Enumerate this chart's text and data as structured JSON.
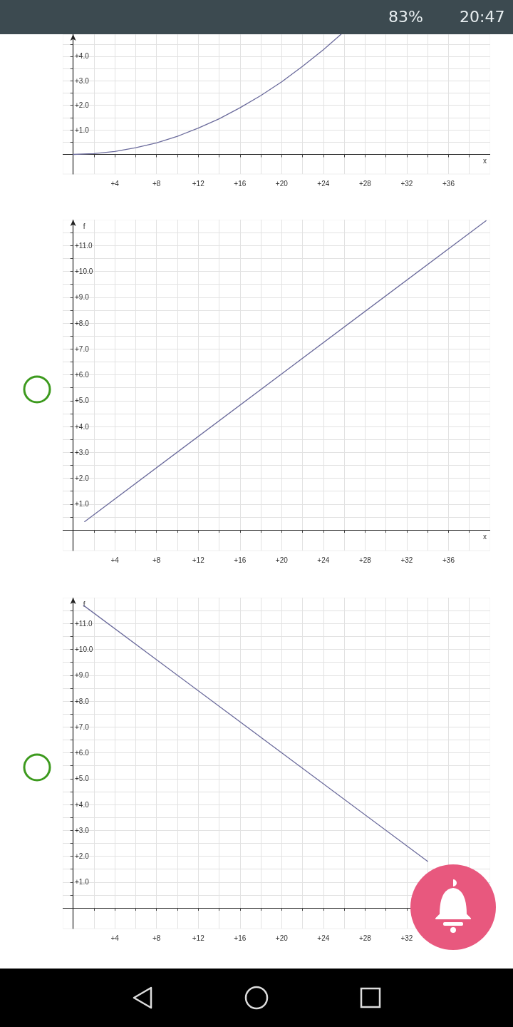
{
  "chart_data": [
    {
      "type": "line",
      "xlabel": "x",
      "annotations": [
        "83%",
        "20:47"
      ],
      "x": [
        0,
        2,
        4,
        6,
        8,
        10,
        12,
        14,
        16,
        18,
        20,
        22,
        24,
        25.7
      ],
      "series": [
        {
          "color": "#6b6b9c",
          "values": [
            0,
            0.03,
            0.12,
            0.27,
            0.47,
            0.74,
            1.07,
            1.45,
            1.9,
            2.4,
            2.96,
            3.59,
            4.27,
            4.9
          ]
        }
      ],
      "xlim": [
        -1,
        40
      ],
      "ylim": [
        -0.8,
        4.9
      ],
      "xticks": [
        {
          "value": 2,
          "label": null
        },
        {
          "value": 4,
          "label": "+4"
        },
        {
          "value": 6,
          "label": null
        },
        {
          "value": 8,
          "label": "+8"
        },
        {
          "value": 10,
          "label": null
        },
        {
          "value": 12,
          "label": "+12"
        },
        {
          "value": 14,
          "label": null
        },
        {
          "value": 16,
          "label": "+16"
        },
        {
          "value": 18,
          "label": null
        },
        {
          "value": 20,
          "label": "+20"
        },
        {
          "value": 22,
          "label": null
        },
        {
          "value": 24,
          "label": "+24"
        },
        {
          "value": 26,
          "label": null
        },
        {
          "value": 28,
          "label": "+28"
        },
        {
          "value": 30,
          "label": null
        },
        {
          "value": 32,
          "label": "+32"
        },
        {
          "value": 34,
          "label": null
        },
        {
          "value": 36,
          "label": "+36"
        },
        {
          "value": 38,
          "label": null
        }
      ],
      "yticks": [
        {
          "value": 0.5,
          "label": null
        },
        {
          "value": 1,
          "label": "+1.0"
        },
        {
          "value": 1.5,
          "label": null
        },
        {
          "value": 2,
          "label": "+2.0"
        },
        {
          "value": 2.5,
          "label": null
        },
        {
          "value": 3,
          "label": "+3.0"
        },
        {
          "value": 3.5,
          "label": null
        },
        {
          "value": 4,
          "label": "+4.0"
        },
        {
          "value": 4.5,
          "label": null
        }
      ],
      "grid": true,
      "marker": "none",
      "line_style": "solid"
    },
    {
      "type": "line",
      "xlabel": "x",
      "ylabel": "f",
      "x": [
        1.1,
        39.6
      ],
      "series": [
        {
          "color": "#6b6b9c",
          "values": [
            0.32,
            11.96
          ]
        }
      ],
      "xlim": [
        -1,
        40
      ],
      "ylim": [
        -0.8,
        12
      ],
      "xticks": [
        {
          "value": 2,
          "label": null
        },
        {
          "value": 4,
          "label": "+4"
        },
        {
          "value": 6,
          "label": null
        },
        {
          "value": 8,
          "label": "+8"
        },
        {
          "value": 10,
          "label": null
        },
        {
          "value": 12,
          "label": "+12"
        },
        {
          "value": 14,
          "label": null
        },
        {
          "value": 16,
          "label": "+16"
        },
        {
          "value": 18,
          "label": null
        },
        {
          "value": 20,
          "label": "+20"
        },
        {
          "value": 22,
          "label": null
        },
        {
          "value": 24,
          "label": "+24"
        },
        {
          "value": 26,
          "label": null
        },
        {
          "value": 28,
          "label": "+28"
        },
        {
          "value": 30,
          "label": null
        },
        {
          "value": 32,
          "label": "+32"
        },
        {
          "value": 34,
          "label": null
        },
        {
          "value": 36,
          "label": "+36"
        },
        {
          "value": 38,
          "label": null
        }
      ],
      "yticks": [
        {
          "value": 0.5,
          "label": null
        },
        {
          "value": 1,
          "label": "+1.0"
        },
        {
          "value": 1.5,
          "label": null
        },
        {
          "value": 2,
          "label": "+2.0"
        },
        {
          "value": 2.5,
          "label": null
        },
        {
          "value": 3,
          "label": "+3.0"
        },
        {
          "value": 3.5,
          "label": null
        },
        {
          "value": 4,
          "label": "+4.0"
        },
        {
          "value": 4.5,
          "label": null
        },
        {
          "value": 5,
          "label": "+5.0"
        },
        {
          "value": 5.5,
          "label": null
        },
        {
          "value": 6,
          "label": "+6.0"
        },
        {
          "value": 6.5,
          "label": null
        },
        {
          "value": 7,
          "label": "+7.0"
        },
        {
          "value": 7.5,
          "label": null
        },
        {
          "value": 8,
          "label": "+8.0"
        },
        {
          "value": 8.5,
          "label": null
        },
        {
          "value": 9,
          "label": "+9.0"
        },
        {
          "value": 9.5,
          "label": null
        },
        {
          "value": 10,
          "label": "+10.0"
        },
        {
          "value": 10.5,
          "label": null
        },
        {
          "value": 11,
          "label": "+11.0"
        },
        {
          "value": 11.5,
          "label": null
        }
      ],
      "grid": true,
      "marker": "none",
      "line_style": "solid"
    },
    {
      "type": "line",
      "ylabel": "f",
      "x": [
        1,
        34
      ],
      "series": [
        {
          "color": "#6b6b9c",
          "values": [
            11.7,
            1.8
          ]
        }
      ],
      "xlim": [
        -1,
        40
      ],
      "ylim": [
        -0.8,
        12
      ],
      "xticks": [
        {
          "value": 2,
          "label": null
        },
        {
          "value": 4,
          "label": "+4"
        },
        {
          "value": 6,
          "label": null
        },
        {
          "value": 8,
          "label": "+8"
        },
        {
          "value": 10,
          "label": null
        },
        {
          "value": 12,
          "label": "+12"
        },
        {
          "value": 14,
          "label": null
        },
        {
          "value": 16,
          "label": "+16"
        },
        {
          "value": 18,
          "label": null
        },
        {
          "value": 20,
          "label": "+20"
        },
        {
          "value": 22,
          "label": null
        },
        {
          "value": 24,
          "label": "+24"
        },
        {
          "value": 26,
          "label": null
        },
        {
          "value": 28,
          "label": "+28"
        },
        {
          "value": 30,
          "label": null
        },
        {
          "value": 32,
          "label": "+32"
        },
        {
          "value": 34,
          "label": null
        },
        {
          "value": 36,
          "label": null
        },
        {
          "value": 38,
          "label": null
        }
      ],
      "yticks": [
        {
          "value": 0.5,
          "label": null
        },
        {
          "value": 1,
          "label": "+1.0"
        },
        {
          "value": 1.5,
          "label": null
        },
        {
          "value": 2,
          "label": "+2.0"
        },
        {
          "value": 2.5,
          "label": null
        },
        {
          "value": 3,
          "label": "+3.0"
        },
        {
          "value": 3.5,
          "label": null
        },
        {
          "value": 4,
          "label": "+4.0"
        },
        {
          "value": 4.5,
          "label": null
        },
        {
          "value": 5,
          "label": "+5.0"
        },
        {
          "value": 5.5,
          "label": null
        },
        {
          "value": 6,
          "label": "+6.0"
        },
        {
          "value": 6.5,
          "label": null
        },
        {
          "value": 7,
          "label": "+7.0"
        },
        {
          "value": 7.5,
          "label": null
        },
        {
          "value": 8,
          "label": "+8.0"
        },
        {
          "value": 8.5,
          "label": null
        },
        {
          "value": 9,
          "label": "+9.0"
        },
        {
          "value": 9.5,
          "label": null
        },
        {
          "value": 10,
          "label": "+10.0"
        },
        {
          "value": 10.5,
          "label": null
        },
        {
          "value": 11,
          "label": "+11.0"
        },
        {
          "value": 11.5,
          "label": null
        }
      ],
      "grid": true,
      "marker": "none",
      "line_style": "solid"
    }
  ]
}
